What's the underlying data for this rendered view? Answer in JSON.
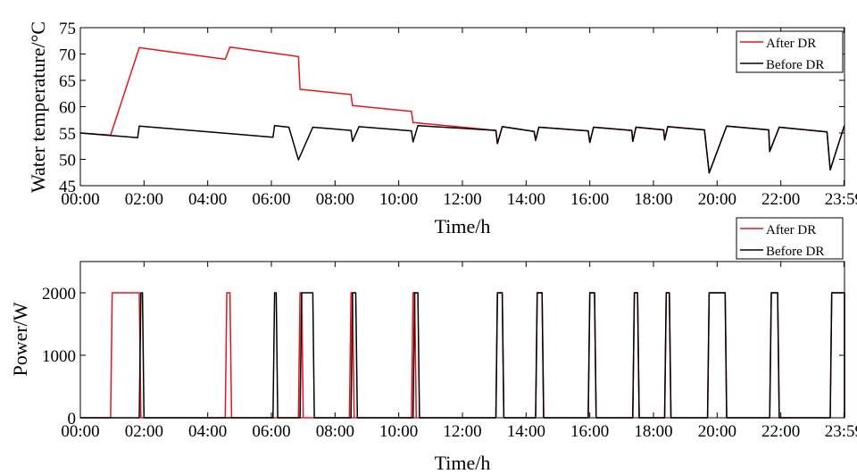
{
  "colors": {
    "after": "#e8141c",
    "before": "#000000"
  },
  "chart_data": [
    {
      "type": "line",
      "xlabel": "Time/h",
      "ylabel": "Water temperature/°C",
      "xlim": [
        0,
        24
      ],
      "ylim": [
        45,
        75
      ],
      "x_ticks": [
        0,
        2,
        4,
        6,
        8,
        10,
        12,
        14,
        16,
        18,
        20,
        22,
        23.983
      ],
      "x_tick_labels": [
        "00:00",
        "02:00",
        "04:00",
        "06:00",
        "08:00",
        "10:00",
        "12:00",
        "14:00",
        "16:00",
        "18:00",
        "20:00",
        "22:00",
        "23:59"
      ],
      "y_ticks": [
        45,
        50,
        55,
        60,
        65,
        70,
        75
      ],
      "y_tick_labels": [
        "45",
        "50",
        "55",
        "60",
        "65",
        "70",
        "75"
      ],
      "grid": false,
      "legend": "top-right",
      "series": [
        {
          "name": "After DR",
          "color_key": "after",
          "points": [
            [
              0,
              55
            ],
            [
              0.95,
              54.6
            ],
            [
              1.85,
              71.2
            ],
            [
              4.55,
              69
            ],
            [
              4.7,
              71.3
            ],
            [
              6.85,
              69.5
            ],
            [
              6.9,
              63.3
            ],
            [
              8.5,
              62.3
            ],
            [
              8.55,
              60.2
            ],
            [
              10.4,
              59.1
            ],
            [
              10.45,
              57
            ],
            [
              13.05,
              55.5
            ],
            [
              13.1,
              53
            ],
            [
              13.25,
              56.2
            ],
            [
              14.25,
              55.3
            ],
            [
              14.3,
              53.6
            ],
            [
              14.4,
              56.1
            ],
            [
              15.95,
              55.4
            ],
            [
              16.0,
              53.2
            ],
            [
              16.12,
              56.1
            ],
            [
              17.32,
              55.5
            ],
            [
              17.35,
              53.4
            ],
            [
              17.45,
              56.1
            ],
            [
              18.32,
              55.6
            ],
            [
              18.35,
              53.7
            ],
            [
              18.45,
              56.2
            ],
            [
              19.6,
              55.6
            ],
            [
              19.75,
              47.4
            ],
            [
              20.3,
              56.3
            ],
            [
              21.62,
              55.6
            ],
            [
              21.65,
              51.5
            ],
            [
              21.95,
              56.1
            ],
            [
              23.45,
              55.2
            ],
            [
              23.55,
              48
            ],
            [
              23.99,
              56.3
            ],
            [
              24,
              56.2
            ]
          ]
        },
        {
          "name": "Before DR",
          "color_key": "before",
          "points": [
            [
              0,
              55
            ],
            [
              1.8,
              54.1
            ],
            [
              1.85,
              56.3
            ],
            [
              6.05,
              54.2
            ],
            [
              6.1,
              56.4
            ],
            [
              6.55,
              56.1
            ],
            [
              6.85,
              49.9
            ],
            [
              7.3,
              56.1
            ],
            [
              8.5,
              55.5
            ],
            [
              8.55,
              53.4
            ],
            [
              8.75,
              56.2
            ],
            [
              10.4,
              55.4
            ],
            [
              10.45,
              53.3
            ],
            [
              10.6,
              56.4
            ],
            [
              13.05,
              55.5
            ],
            [
              13.1,
              53
            ],
            [
              13.25,
              56.2
            ],
            [
              14.25,
              55.3
            ],
            [
              14.3,
              53.6
            ],
            [
              14.4,
              56.1
            ],
            [
              15.95,
              55.4
            ],
            [
              16.0,
              53.2
            ],
            [
              16.12,
              56.1
            ],
            [
              17.32,
              55.5
            ],
            [
              17.35,
              53.4
            ],
            [
              17.45,
              56.1
            ],
            [
              18.32,
              55.6
            ],
            [
              18.35,
              53.7
            ],
            [
              18.45,
              56.2
            ],
            [
              19.6,
              55.6
            ],
            [
              19.75,
              47.4
            ],
            [
              20.3,
              56.3
            ],
            [
              21.62,
              55.6
            ],
            [
              21.65,
              51.5
            ],
            [
              21.95,
              56.1
            ],
            [
              23.45,
              55.2
            ],
            [
              23.55,
              48
            ],
            [
              23.99,
              56.3
            ],
            [
              24,
              56.2
            ]
          ]
        }
      ]
    },
    {
      "type": "line",
      "xlabel": "Time/h",
      "ylabel": "Power/W",
      "xlim": [
        0,
        24
      ],
      "ylim": [
        0,
        2500
      ],
      "x_ticks": [
        0,
        2,
        4,
        6,
        8,
        10,
        12,
        14,
        16,
        18,
        20,
        22,
        23.983
      ],
      "x_tick_labels": [
        "00:00",
        "02:00",
        "04:00",
        "06:00",
        "08:00",
        "10:00",
        "12:00",
        "14:00",
        "16:00",
        "18:00",
        "20:00",
        "22:00",
        "23:59"
      ],
      "y_ticks": [
        0,
        1000,
        2000
      ],
      "y_tick_labels": [
        "0",
        "1000",
        "2000"
      ],
      "grid": false,
      "legend": "top-right",
      "series": [
        {
          "name": "After DR",
          "color_key": "after",
          "points": [
            [
              0,
              0
            ],
            [
              0.95,
              0
            ],
            [
              1.0,
              2000
            ],
            [
              1.85,
              2000
            ],
            [
              1.9,
              0
            ],
            [
              4.55,
              0
            ],
            [
              4.6,
              2000
            ],
            [
              4.7,
              2000
            ],
            [
              4.75,
              0
            ],
            [
              6.85,
              0
            ],
            [
              6.9,
              2000
            ],
            [
              6.95,
              2000
            ],
            [
              7.0,
              0
            ],
            [
              8.45,
              0
            ],
            [
              8.5,
              2000
            ],
            [
              8.55,
              2000
            ],
            [
              8.6,
              0
            ],
            [
              10.4,
              0
            ],
            [
              10.45,
              2000
            ],
            [
              10.5,
              2000
            ],
            [
              10.55,
              0
            ],
            [
              13.05,
              0
            ],
            [
              13.1,
              2000
            ],
            [
              13.25,
              2000
            ],
            [
              13.3,
              0
            ],
            [
              14.3,
              0
            ],
            [
              14.35,
              2000
            ],
            [
              14.5,
              2000
            ],
            [
              14.55,
              0
            ],
            [
              15.95,
              0
            ],
            [
              16.0,
              2000
            ],
            [
              16.15,
              2000
            ],
            [
              16.2,
              0
            ],
            [
              17.35,
              0
            ],
            [
              17.4,
              2000
            ],
            [
              17.5,
              2000
            ],
            [
              17.55,
              0
            ],
            [
              18.35,
              0
            ],
            [
              18.4,
              2000
            ],
            [
              18.5,
              2000
            ],
            [
              18.55,
              0
            ],
            [
              19.7,
              0
            ],
            [
              19.75,
              2000
            ],
            [
              20.25,
              2000
            ],
            [
              20.3,
              0
            ],
            [
              21.65,
              0
            ],
            [
              21.7,
              2000
            ],
            [
              21.9,
              2000
            ],
            [
              21.95,
              0
            ],
            [
              23.55,
              0
            ],
            [
              23.6,
              2000
            ],
            [
              24.0,
              2000
            ],
            [
              24.0,
              0
            ]
          ]
        },
        {
          "name": "Before DR",
          "color_key": "before",
          "points": [
            [
              0,
              0
            ],
            [
              1.85,
              0
            ],
            [
              1.9,
              2000
            ],
            [
              1.95,
              2000
            ],
            [
              2.0,
              0
            ],
            [
              6.05,
              0
            ],
            [
              6.1,
              2000
            ],
            [
              6.15,
              2000
            ],
            [
              6.2,
              0
            ],
            [
              6.9,
              0
            ],
            [
              6.95,
              2000
            ],
            [
              7.3,
              2000
            ],
            [
              7.35,
              0
            ],
            [
              8.5,
              0
            ],
            [
              8.55,
              2000
            ],
            [
              8.65,
              2000
            ],
            [
              8.7,
              0
            ],
            [
              10.45,
              0
            ],
            [
              10.5,
              2000
            ],
            [
              10.6,
              2000
            ],
            [
              10.65,
              0
            ],
            [
              13.05,
              0
            ],
            [
              13.1,
              2000
            ],
            [
              13.25,
              2000
            ],
            [
              13.3,
              0
            ],
            [
              14.3,
              0
            ],
            [
              14.35,
              2000
            ],
            [
              14.5,
              2000
            ],
            [
              14.55,
              0
            ],
            [
              15.95,
              0
            ],
            [
              16.0,
              2000
            ],
            [
              16.15,
              2000
            ],
            [
              16.2,
              0
            ],
            [
              17.35,
              0
            ],
            [
              17.4,
              2000
            ],
            [
              17.5,
              2000
            ],
            [
              17.55,
              0
            ],
            [
              18.35,
              0
            ],
            [
              18.4,
              2000
            ],
            [
              18.5,
              2000
            ],
            [
              18.55,
              0
            ],
            [
              19.7,
              0
            ],
            [
              19.75,
              2000
            ],
            [
              20.25,
              2000
            ],
            [
              20.3,
              0
            ],
            [
              21.65,
              0
            ],
            [
              21.7,
              2000
            ],
            [
              21.9,
              2000
            ],
            [
              21.95,
              0
            ],
            [
              23.55,
              0
            ],
            [
              23.6,
              2000
            ],
            [
              24.0,
              2000
            ],
            [
              24.0,
              0
            ]
          ]
        }
      ]
    }
  ]
}
